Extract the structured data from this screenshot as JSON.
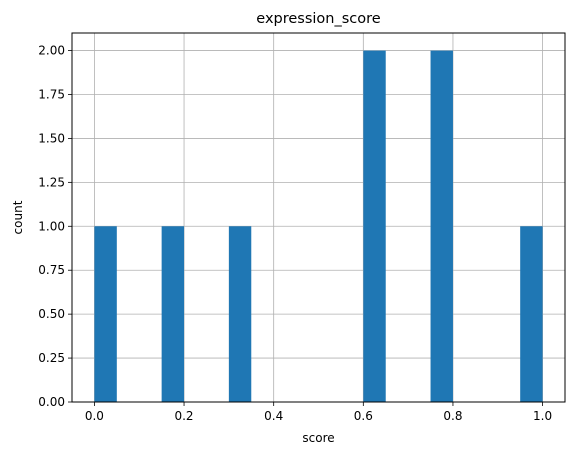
{
  "chart_data": {
    "type": "bar",
    "title": "expression_score",
    "xlabel": "score",
    "ylabel": "count",
    "bin_width": 0.05,
    "bars": [
      {
        "x_start": 0.0,
        "x_end": 0.05,
        "count": 1
      },
      {
        "x_start": 0.15,
        "x_end": 0.2,
        "count": 1
      },
      {
        "x_start": 0.3,
        "x_end": 0.35,
        "count": 1
      },
      {
        "x_start": 0.6,
        "x_end": 0.65,
        "count": 2
      },
      {
        "x_start": 0.75,
        "x_end": 0.8,
        "count": 2
      },
      {
        "x_start": 0.95,
        "x_end": 1.0,
        "count": 1
      }
    ],
    "xlim": [
      -0.05,
      1.05
    ],
    "ylim": [
      0,
      2.1
    ],
    "x_ticks": [
      {
        "value": 0.0,
        "label": "0.0"
      },
      {
        "value": 0.2,
        "label": "0.2"
      },
      {
        "value": 0.4,
        "label": "0.4"
      },
      {
        "value": 0.6,
        "label": "0.6"
      },
      {
        "value": 0.8,
        "label": "0.8"
      },
      {
        "value": 1.0,
        "label": "1.0"
      }
    ],
    "y_ticks": [
      {
        "value": 0.0,
        "label": "0.00"
      },
      {
        "value": 0.25,
        "label": "0.25"
      },
      {
        "value": 0.5,
        "label": "0.50"
      },
      {
        "value": 0.75,
        "label": "0.75"
      },
      {
        "value": 1.0,
        "label": "1.00"
      },
      {
        "value": 1.25,
        "label": "1.25"
      },
      {
        "value": 1.5,
        "label": "1.50"
      },
      {
        "value": 1.75,
        "label": "1.75"
      },
      {
        "value": 2.0,
        "label": "2.00"
      }
    ],
    "grid": true,
    "colors": {
      "bar": "#1f77b4",
      "grid": "#b0b0b0",
      "axis": "#000000"
    }
  }
}
